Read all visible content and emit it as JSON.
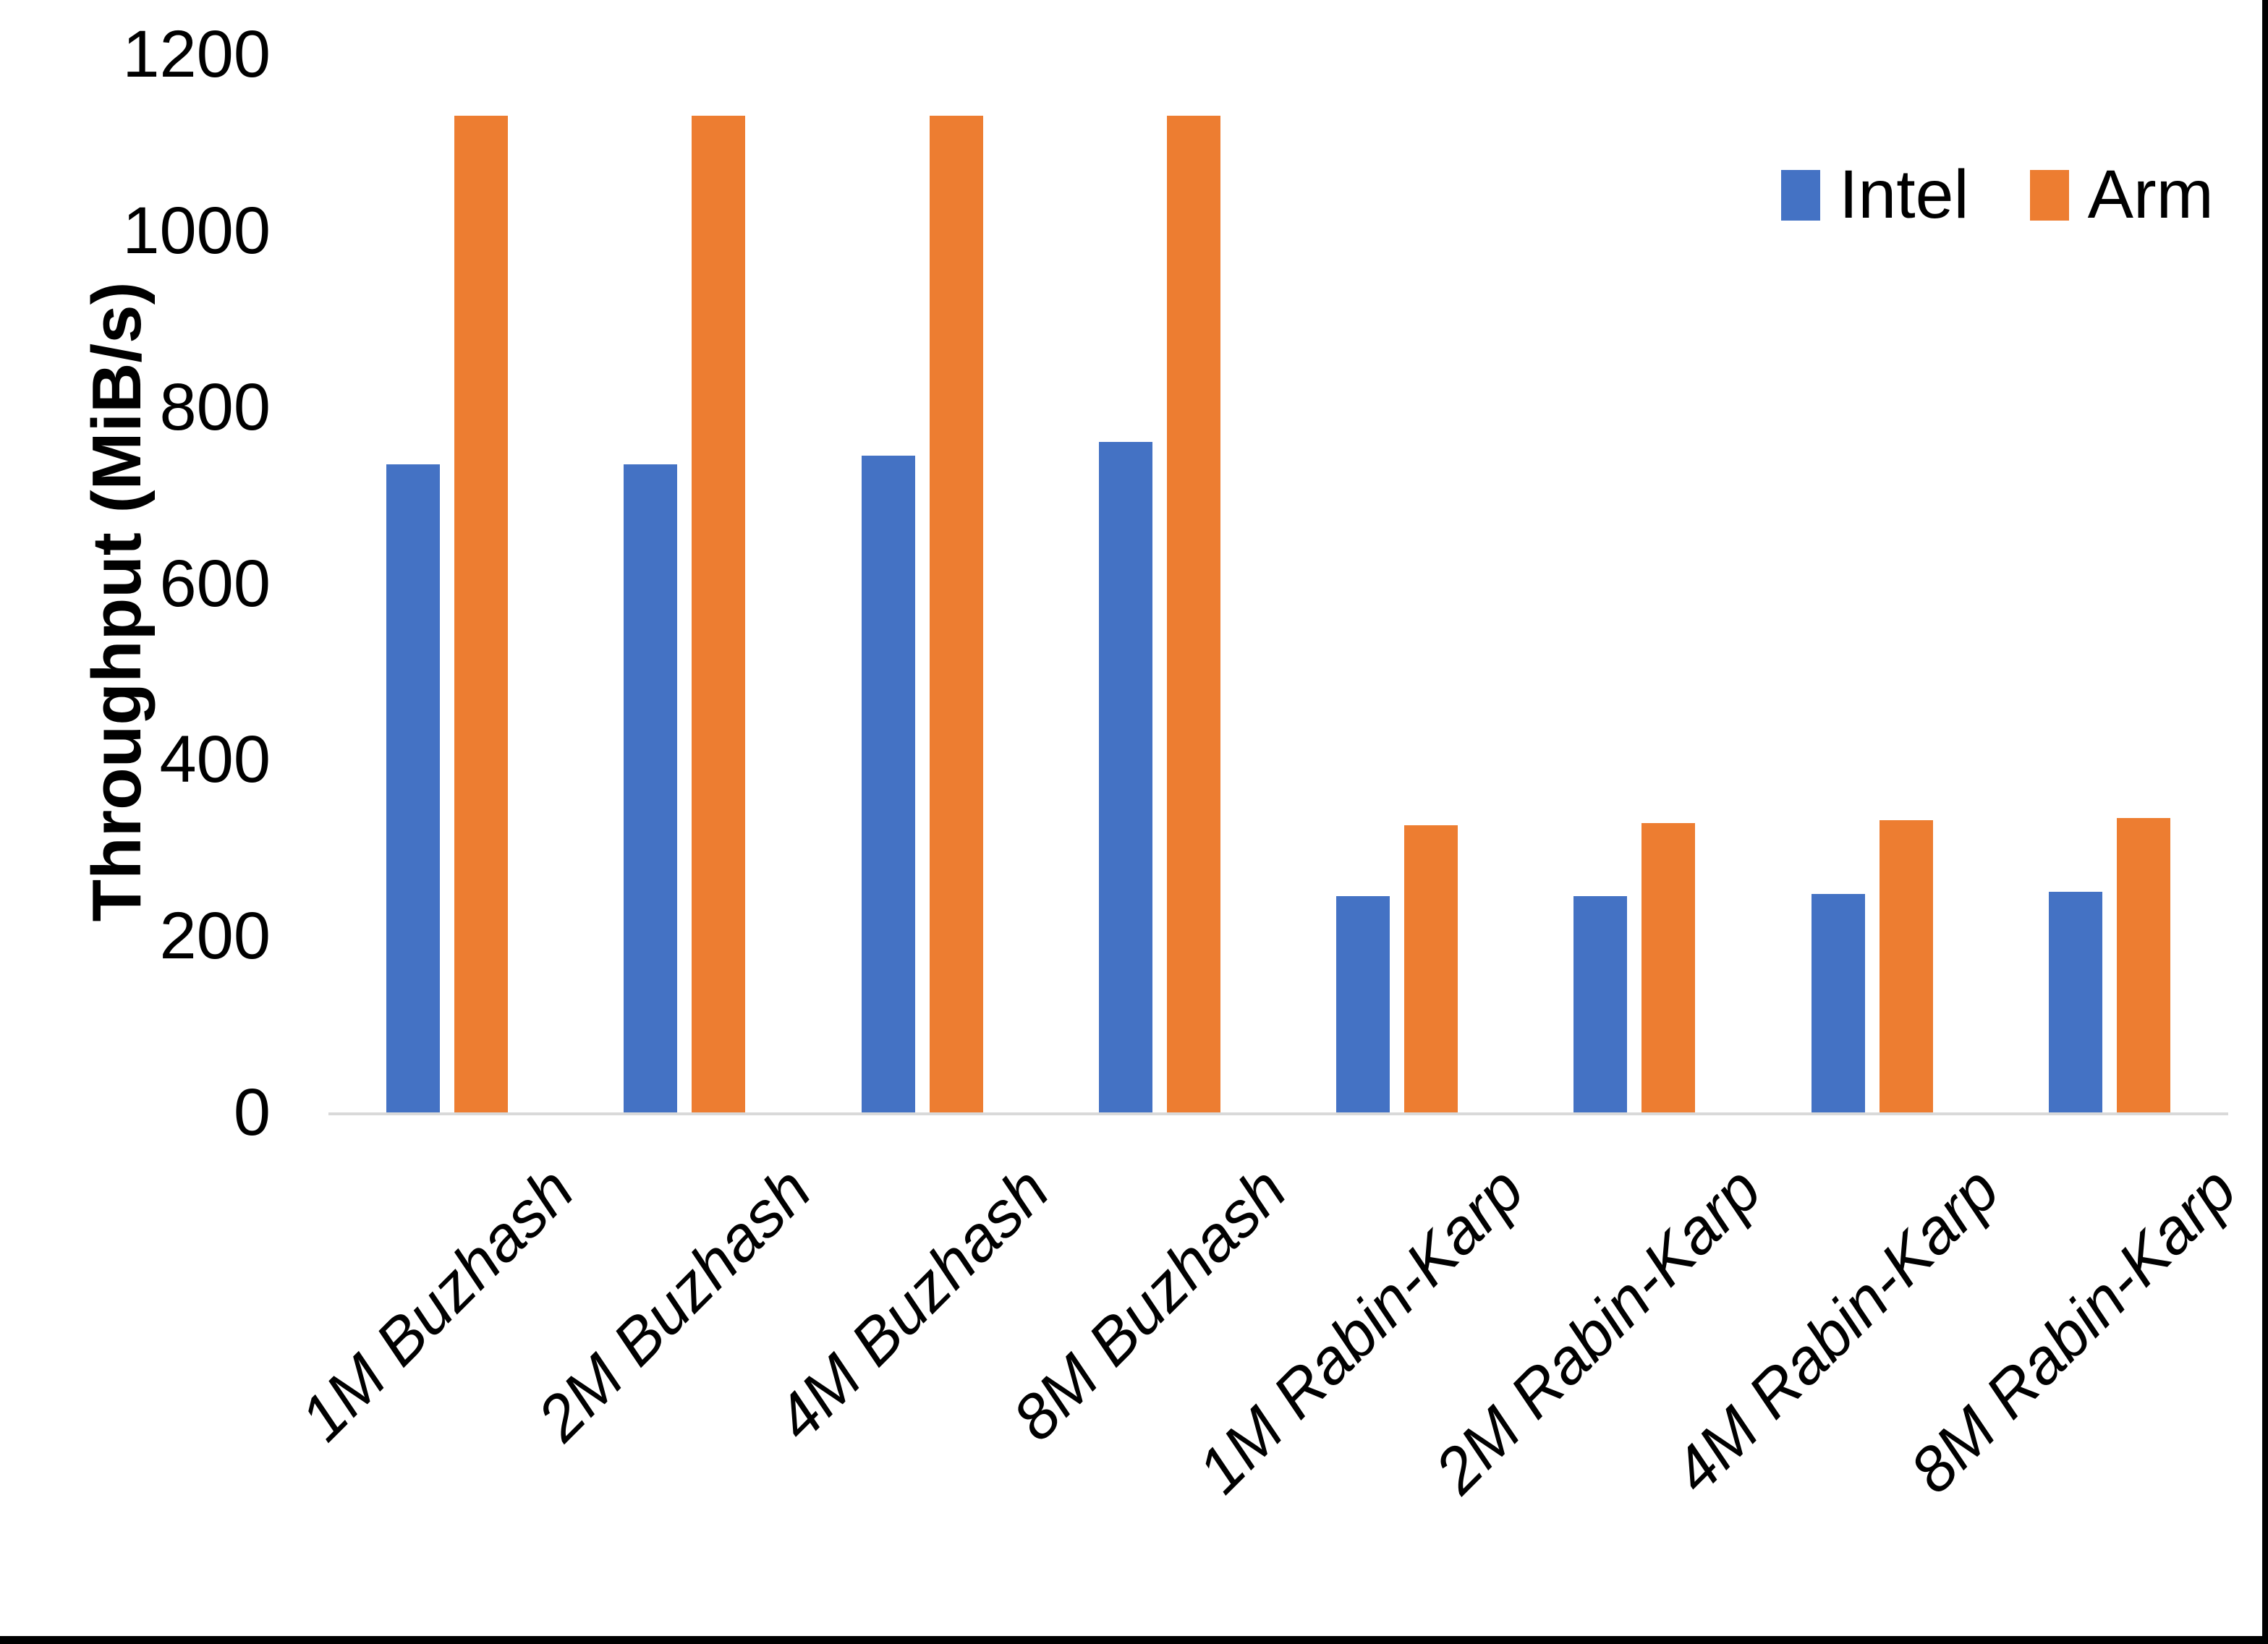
{
  "chart_data": {
    "type": "bar",
    "title": "",
    "xlabel": "",
    "ylabel": "Throughput (MiB/s)",
    "ylim": [
      0,
      1200
    ],
    "yticks": [
      0,
      200,
      400,
      600,
      800,
      1000,
      1200
    ],
    "grid": false,
    "legend_position": "top-right",
    "categories": [
      "1M Buzhash",
      "2M Buzhash",
      "4M Buzhash",
      "8M Buzhash",
      "1M Rabin-Karp",
      "2M Rabin-Karp",
      "4M Rabin-Karp",
      "8M Rabin-Karp"
    ],
    "series": [
      {
        "name": "Intel",
        "color": "#4472C4",
        "values": [
          735,
          735,
          745,
          760,
          245,
          245,
          248,
          250
        ]
      },
      {
        "name": "Arm",
        "color": "#ED7D31",
        "values": [
          1130,
          1130,
          1130,
          1130,
          326,
          328,
          331,
          334
        ]
      }
    ],
    "axis_line_color": "#D9D9D9"
  }
}
